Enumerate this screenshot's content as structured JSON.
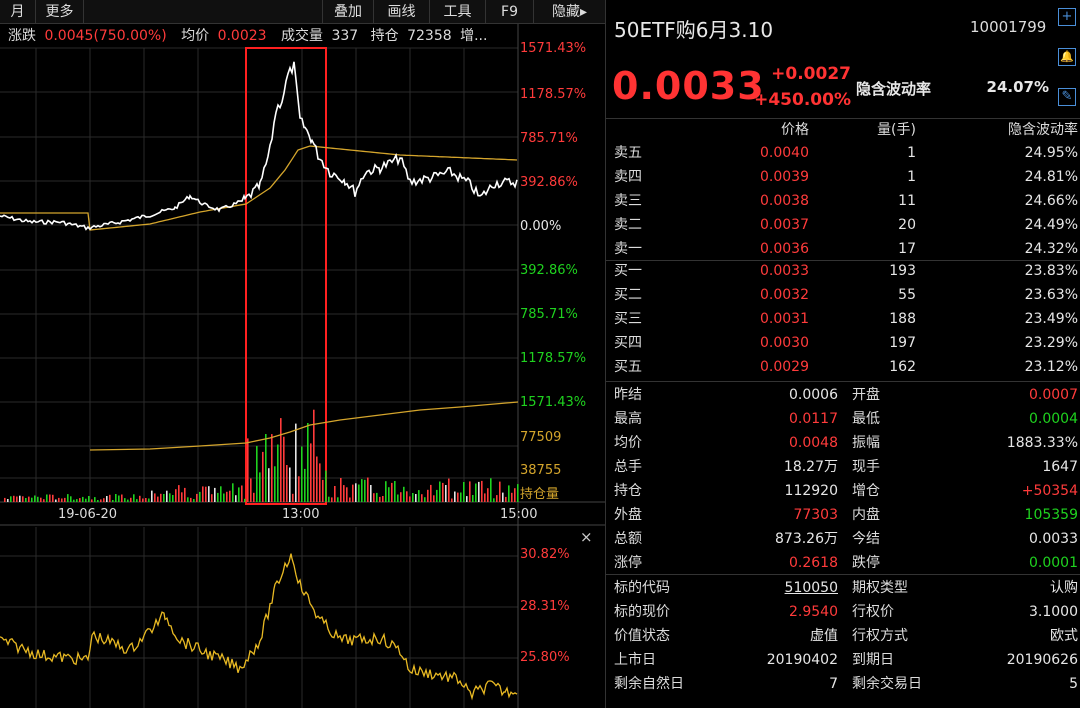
{
  "toolbar": {
    "items": [
      "月",
      "更多",
      "叠加",
      "画线",
      "工具",
      "F9",
      "隐藏▸"
    ]
  },
  "infobar": {
    "change_label": "涨跌",
    "change_value": "0.0045(750.00%)",
    "avg_label": "均价",
    "avg_value": "0.0023",
    "volume_label": "成交量",
    "volume_value": "337",
    "oi_label": "持仓",
    "oi_value": "72358",
    "more_label": "增..."
  },
  "chart_axes": {
    "price_pct_labels_up": [
      "1571.43%",
      "1178.57%",
      "785.71%",
      "392.86%"
    ],
    "price_zero": "0.00%",
    "price_pct_labels_down": [
      "392.86%",
      "785.71%",
      "1178.57%",
      "1571.43%"
    ],
    "volume_labels": [
      "77509",
      "38755"
    ],
    "volume_axis_name": "持仓量",
    "time_labels": [
      "19-06-20",
      "13:00",
      "15:00"
    ],
    "iv_labels": [
      "30.82%",
      "28.31%",
      "25.80%"
    ],
    "close_symbol": "×"
  },
  "colors": {
    "up": "#ff3b3b",
    "down": "#1fd21f",
    "price_line": "#ffffff",
    "avg_line": "#d4a52c",
    "iv_line": "#e8b923",
    "highlight_box": "#ff2020",
    "panel_bg": "#000000"
  },
  "quote": {
    "title": "50ETF购6月3.10",
    "code": "10001799",
    "price": "0.0033",
    "change": "+0.0027",
    "change_pct": "+450.00%",
    "iv_label": "隐含波动率",
    "iv_value": "24.07%",
    "icons": [
      "plus-icon",
      "bell-icon",
      "edit-icon"
    ]
  },
  "orderbook": {
    "headers": {
      "price": "价格",
      "volume": "量(手)",
      "iv": "隐含波动率"
    },
    "asks": [
      {
        "label": "卖五",
        "price": "0.0040",
        "vol": "1",
        "iv": "24.95%"
      },
      {
        "label": "卖四",
        "price": "0.0039",
        "vol": "1",
        "iv": "24.81%"
      },
      {
        "label": "卖三",
        "price": "0.0038",
        "vol": "11",
        "iv": "24.66%"
      },
      {
        "label": "卖二",
        "price": "0.0037",
        "vol": "20",
        "iv": "24.49%"
      },
      {
        "label": "卖一",
        "price": "0.0036",
        "vol": "17",
        "iv": "24.32%"
      }
    ],
    "bids": [
      {
        "label": "买一",
        "price": "0.0033",
        "vol": "193",
        "iv": "23.83%"
      },
      {
        "label": "买二",
        "price": "0.0032",
        "vol": "55",
        "iv": "23.63%"
      },
      {
        "label": "买三",
        "price": "0.0031",
        "vol": "188",
        "iv": "23.49%"
      },
      {
        "label": "买四",
        "price": "0.0030",
        "vol": "197",
        "iv": "23.29%"
      },
      {
        "label": "买五",
        "price": "0.0029",
        "vol": "162",
        "iv": "23.12%"
      }
    ]
  },
  "stats": [
    {
      "l1": "昨结",
      "v1": "0.0006",
      "c1": "white",
      "l2": "开盘",
      "v2": "0.0007",
      "c2": "red"
    },
    {
      "l1": "最高",
      "v1": "0.0117",
      "c1": "red",
      "l2": "最低",
      "v2": "0.0004",
      "c2": "green"
    },
    {
      "l1": "均价",
      "v1": "0.0048",
      "c1": "red",
      "l2": "振幅",
      "v2": "1883.33%",
      "c2": "white"
    },
    {
      "l1": "总手",
      "v1": "18.27万",
      "c1": "white",
      "l2": "现手",
      "v2": "1647",
      "c2": "white"
    },
    {
      "l1": "持仓",
      "v1": "112920",
      "c1": "white",
      "l2": "增仓",
      "v2": "+50354",
      "c2": "red"
    },
    {
      "l1": "外盘",
      "v1": "77303",
      "c1": "red",
      "l2": "内盘",
      "v2": "105359",
      "c2": "green"
    },
    {
      "l1": "总额",
      "v1": "873.26万",
      "c1": "white",
      "l2": "今结",
      "v2": "0.0033",
      "c2": "white"
    },
    {
      "l1": "涨停",
      "v1": "0.2618",
      "c1": "red",
      "l2": "跌停",
      "v2": "0.0001",
      "c2": "green"
    }
  ],
  "details": [
    {
      "l1": "标的代码",
      "v1": "510050",
      "c1": "white ul",
      "l2": "期权类型",
      "v2": "认购",
      "c2": "white"
    },
    {
      "l1": "标的现价",
      "v1": "2.9540",
      "c1": "red",
      "l2": "行权价",
      "v2": "3.1000",
      "c2": "white"
    },
    {
      "l1": "价值状态",
      "v1": "虚值",
      "c1": "white",
      "l2": "行权方式",
      "v2": "欧式",
      "c2": "white"
    },
    {
      "l1": "上市日",
      "v1": "20190402",
      "c1": "white",
      "l2": "到期日",
      "v2": "20190626",
      "c2": "white"
    },
    {
      "l1": "剩余自然日",
      "v1": "7",
      "c1": "white",
      "l2": "剩余交易日",
      "v2": "5",
      "c2": "white"
    }
  ]
}
